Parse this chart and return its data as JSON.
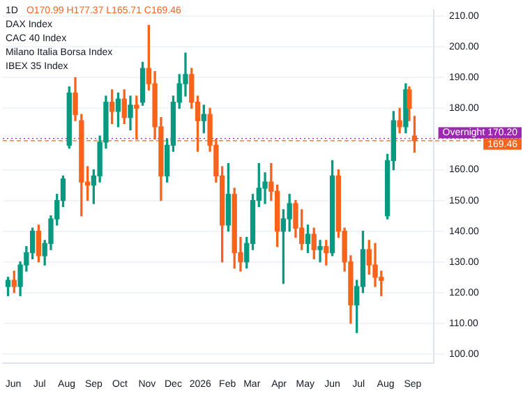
{
  "chart_data": {
    "type": "candlestick",
    "annotations": [
      "1D",
      "O170.99 H177.37 L165.71 C169.46",
      "DAX Index",
      "CAC 40 Index",
      "Milano Italia Borsa Index",
      "IBEX 35 Index"
    ],
    "x": [
      "2025-05-26",
      "2025-06-02",
      "2025-06-09",
      "2025-06-16",
      "2025-06-23",
      "2025-06-30",
      "2025-07-07",
      "2025-07-14",
      "2025-07-21",
      "2025-07-28",
      "2025-08-04",
      "2025-08-11",
      "2025-08-18",
      "2025-08-25",
      "2025-09-01",
      "2025-09-08",
      "2025-09-15",
      "2025-09-22",
      "2025-09-29",
      "2025-10-06",
      "2025-10-13",
      "2025-10-20",
      "2025-10-27",
      "2025-11-03",
      "2025-11-10",
      "2025-11-17",
      "2025-11-24",
      "2025-12-01",
      "2025-12-08",
      "2025-12-15",
      "2025-12-22",
      "2025-12-29",
      "2026-01-05",
      "2026-01-12",
      "2026-01-19",
      "2026-01-26",
      "2026-02-02",
      "2026-02-09",
      "2026-02-16",
      "2026-02-23",
      "2026-03-02",
      "2026-03-09",
      "2026-03-16",
      "2026-03-23",
      "2026-03-30",
      "2026-04-06",
      "2026-04-13",
      "2026-04-20",
      "2026-04-27",
      "2026-05-04",
      "2026-05-11",
      "2026-05-18",
      "2026-05-25",
      "2026-06-01",
      "2026-06-08",
      "2026-06-15",
      "2026-06-22",
      "2026-06-29",
      "2026-07-06",
      "2026-07-13",
      "2026-07-20",
      "2026-07-27",
      "2026-08-03",
      "2026-08-10",
      "2026-08-17",
      "2026-08-24",
      "2026-08-28",
      "2026-09-03"
    ],
    "ohlc": [
      [
        122,
        125,
        119,
        124
      ],
      [
        124,
        127,
        120,
        122
      ],
      [
        122,
        130,
        119,
        129
      ],
      [
        129,
        135,
        127,
        133
      ],
      [
        133,
        141,
        131,
        140
      ],
      [
        140,
        142,
        130,
        132
      ],
      [
        132,
        137,
        129,
        136
      ],
      [
        136,
        145,
        134,
        144
      ],
      [
        144,
        152,
        142,
        150
      ],
      [
        150,
        158,
        148,
        157
      ],
      [
        168,
        187,
        167,
        185
      ],
      [
        185,
        190,
        176,
        178
      ],
      [
        176,
        178,
        145,
        156
      ],
      [
        156,
        161,
        150,
        155
      ],
      [
        155,
        160,
        149,
        158
      ],
      [
        158,
        171,
        156,
        169
      ],
      [
        169,
        184,
        167,
        182
      ],
      [
        182,
        186,
        175,
        179
      ],
      [
        179,
        185,
        174,
        183
      ],
      [
        183,
        186,
        175,
        177
      ],
      [
        177,
        184,
        173,
        181
      ],
      [
        181,
        184,
        170,
        180
      ],
      [
        182,
        195,
        181,
        193
      ],
      [
        193,
        207,
        186,
        188
      ],
      [
        188,
        192,
        170,
        174
      ],
      [
        174,
        177,
        150,
        158
      ],
      [
        158,
        170,
        156,
        168
      ],
      [
        168,
        184,
        166,
        182
      ],
      [
        182,
        191,
        180,
        188
      ],
      [
        188,
        198,
        184,
        191
      ],
      [
        191,
        193,
        180,
        182
      ],
      [
        182,
        184,
        166,
        176
      ],
      [
        176,
        181,
        172,
        178
      ],
      [
        178,
        180,
        166,
        168
      ],
      [
        168,
        170,
        156,
        158
      ],
      [
        158,
        161,
        130,
        142
      ],
      [
        142,
        162,
        140,
        152
      ],
      [
        152,
        154,
        128,
        133
      ],
      [
        133,
        138,
        127,
        130
      ],
      [
        130,
        138,
        128,
        136
      ],
      [
        136,
        152,
        134,
        150
      ],
      [
        150,
        162,
        148,
        154
      ],
      [
        154,
        159,
        149,
        156
      ],
      [
        156,
        162,
        150,
        153
      ],
      [
        153,
        155,
        135,
        140
      ],
      [
        140,
        147,
        123,
        144
      ],
      [
        144,
        152,
        140,
        149
      ],
      [
        149,
        150,
        138,
        141
      ],
      [
        141,
        147,
        134,
        136
      ],
      [
        136,
        142,
        133,
        139
      ],
      [
        139,
        141,
        131,
        134
      ],
      [
        134,
        137,
        130,
        135
      ],
      [
        135,
        137,
        129,
        133
      ],
      [
        133,
        163,
        132,
        158
      ],
      [
        158,
        160,
        138,
        140
      ],
      [
        140,
        141,
        127,
        130
      ],
      [
        130,
        132,
        110,
        116
      ],
      [
        116,
        124,
        107,
        122
      ],
      [
        122,
        140,
        120,
        134
      ],
      [
        134,
        137,
        126,
        129
      ],
      [
        129,
        136,
        122,
        125
      ],
      [
        125,
        127,
        119,
        124
      ],
      [
        145,
        165,
        144,
        163
      ],
      [
        163,
        179,
        160,
        176
      ],
      [
        176,
        180,
        172,
        174
      ],
      [
        174,
        188,
        172,
        186
      ],
      [
        186,
        187,
        176,
        180
      ],
      [
        170.99,
        177.37,
        165.71,
        169.46
      ]
    ],
    "colors": [
      "#089981",
      "#f7631b",
      "#089981",
      "#089981",
      "#089981",
      "#f7631b",
      "#089981",
      "#089981",
      "#089981",
      "#089981",
      "#089981",
      "#f7631b",
      "#f7631b",
      "#f7631b",
      "#089981",
      "#089981",
      "#089981",
      "#f7631b",
      "#089981",
      "#f7631b",
      "#089981",
      "#f7631b",
      "#089981",
      "#f7631b",
      "#f7631b",
      "#f7631b",
      "#089981",
      "#089981",
      "#089981",
      "#089981",
      "#f7631b",
      "#f7631b",
      "#089981",
      "#f7631b",
      "#f7631b",
      "#f7631b",
      "#089981",
      "#f7631b",
      "#f7631b",
      "#089981",
      "#089981",
      "#089981",
      "#089981",
      "#f7631b",
      "#f7631b",
      "#089981",
      "#089981",
      "#f7631b",
      "#f7631b",
      "#089981",
      "#f7631b",
      "#089981",
      "#f7631b",
      "#089981",
      "#f7631b",
      "#f7631b",
      "#f7631b",
      "#089981",
      "#089981",
      "#f7631b",
      "#f7631b",
      "#f7631b",
      "#089981",
      "#089981",
      "#f7631b",
      "#089981",
      "#f7631b",
      "#f7631b"
    ],
    "xlim": [
      "2025-05-20",
      "2026-09-25"
    ],
    "xticks": [
      {
        "value": "2025-06-01",
        "label": "Jun"
      },
      {
        "value": "2025-07-01",
        "label": "Jul"
      },
      {
        "value": "2025-08-01",
        "label": "Aug"
      },
      {
        "value": "2025-09-01",
        "label": "Sep"
      },
      {
        "value": "2025-10-01",
        "label": "Oct"
      },
      {
        "value": "2025-11-01",
        "label": "Nov"
      },
      {
        "value": "2025-12-01",
        "label": "Dec"
      },
      {
        "value": "2026-01-01",
        "label": "2026"
      },
      {
        "value": "2026-02-01",
        "label": "Feb"
      },
      {
        "value": "2026-03-01",
        "label": "Mar"
      },
      {
        "value": "2026-04-01",
        "label": "Apr"
      },
      {
        "value": "2026-05-01",
        "label": "May"
      },
      {
        "value": "2026-06-01",
        "label": "Jun"
      },
      {
        "value": "2026-07-01",
        "label": "Jul"
      },
      {
        "value": "2026-08-01",
        "label": "Aug"
      },
      {
        "value": "2026-09-01",
        "label": "Sep"
      }
    ],
    "ylim": [
      97,
      212
    ],
    "yticks": [
      {
        "value": 100,
        "label": "100.00"
      },
      {
        "value": 110,
        "label": "110.00"
      },
      {
        "value": 120,
        "label": "120.00"
      },
      {
        "value": 130,
        "label": "130.00"
      },
      {
        "value": 140,
        "label": "140.00"
      },
      {
        "value": 150,
        "label": "150.00"
      },
      {
        "value": 160,
        "label": "160.00"
      },
      {
        "value": 170,
        "label": null
      },
      {
        "value": 180,
        "label": "180.00"
      },
      {
        "value": 190,
        "label": "190.00"
      },
      {
        "value": 200,
        "label": "200.00"
      },
      {
        "value": 210,
        "label": "210.00"
      }
    ],
    "grid": "y",
    "ref_lines": [
      {
        "axis": "y",
        "value": 170.2,
        "label": "Overnight 170.20",
        "color": "#9c27b0",
        "line_style": "dotted"
      },
      {
        "axis": "y",
        "value": 169.46,
        "label": "169.46",
        "color": "#f7631b",
        "line_style": "dashed"
      }
    ]
  }
}
